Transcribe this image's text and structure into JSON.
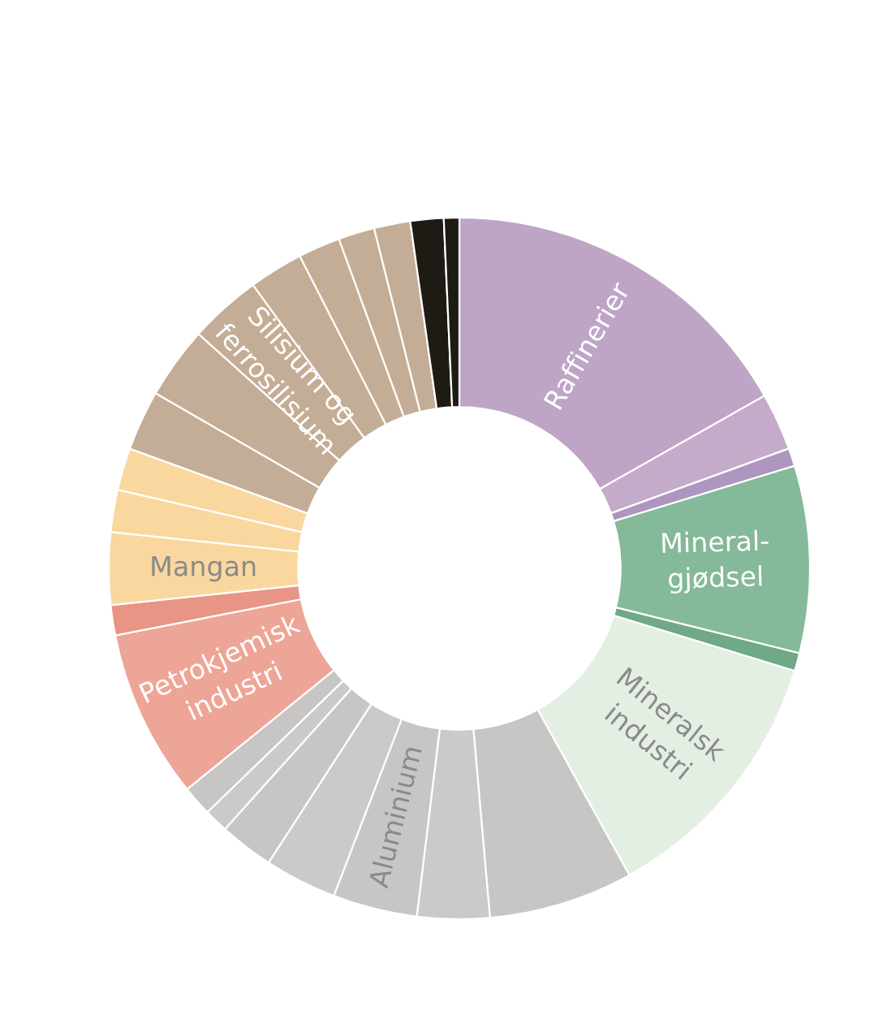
{
  "chart_data": {
    "type": "donut",
    "categories": [
      "Raffinerier",
      null,
      null,
      "Mineral-\ngjødsel",
      null,
      "Mineralsk\nindustri",
      null,
      null,
      "Aluminium",
      null,
      null,
      null,
      null,
      "Petrokjemisk\nindustri",
      null,
      "Mangan",
      null,
      null,
      null,
      null,
      "Silisium og\nferrosilisium",
      null,
      null,
      null,
      null,
      null,
      null
    ],
    "values": [
      16.81,
      2.64,
      0.83,
      8.61,
      0.83,
      12.22,
      6.67,
      3.33,
      3.89,
      3.33,
      2.5,
      1.11,
      1.39,
      7.78,
      1.39,
      3.33,
      1.94,
      1.94,
      2.78,
      3.33,
      3.33,
      2.5,
      1.94,
      1.67,
      1.67,
      1.53,
      0.71
    ],
    "colors": [
      "#bea5c6",
      "#c3abc9",
      "#ae96c0",
      "#84b999",
      "#6fa987",
      "#e3efe3",
      "#c8c6c4",
      "#cccac8",
      "#c8c6c4",
      "#cccac8",
      "#c8c6c4",
      "#cccac8",
      "#c8c6c4",
      "#eda597",
      "#e99585",
      "#fad79e",
      "#fad79e",
      "#fad79e",
      "#c4ad96",
      "#c4ad96",
      "#c4ad96",
      "#c4ad96",
      "#c4ad96",
      "#c4ad96",
      "#c4ad96",
      "#1e1a14",
      "#1e1a14"
    ]
  }
}
